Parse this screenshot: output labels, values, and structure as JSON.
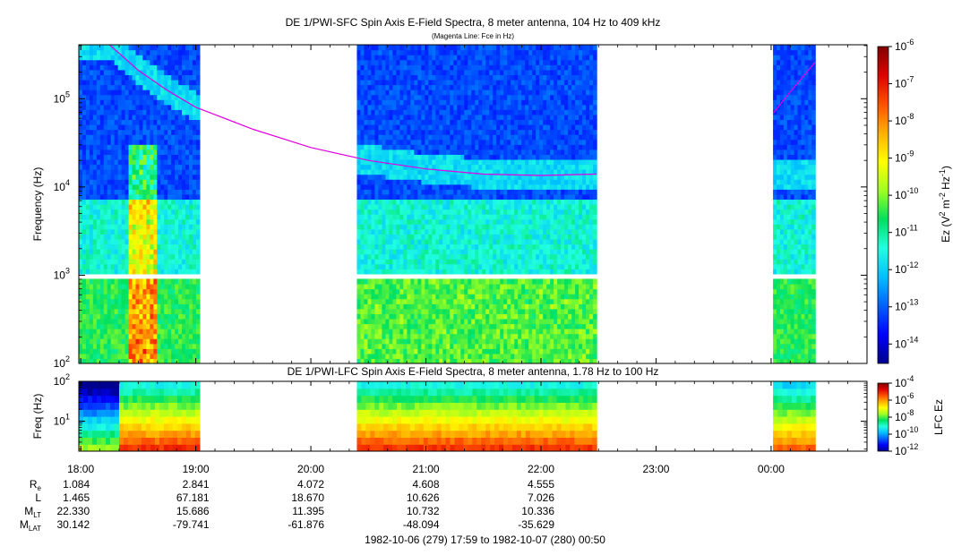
{
  "colors": {
    "fce_line": "#e000e0",
    "colormap": [
      "#00008f",
      "#0000ff",
      "#0060ff",
      "#00c0ff",
      "#20ffe0",
      "#00e060",
      "#a0ff20",
      "#ffff00",
      "#ffb000",
      "#ff5000",
      "#e00000",
      "#800000"
    ]
  },
  "chart_data": [
    {
      "type": "heatmap",
      "title": "DE 1/PWI-SFC  Spin Axis E-Field Spectra, 8 meter antenna, 104 Hz to 409 kHz",
      "subtitle": "(Magenta Line: Fce in Hz)",
      "ylabel": "Frequency (Hz)",
      "yscale": "log",
      "ylim": [
        100,
        409000
      ],
      "yticks": [
        {
          "base": "10",
          "exp": "2",
          "value": 100
        },
        {
          "base": "10",
          "exp": "3",
          "value": 1000
        },
        {
          "base": "10",
          "exp": "4",
          "value": 10000
        },
        {
          "base": "10",
          "exp": "5",
          "value": 100000
        }
      ],
      "xlim": [
        "17:59",
        "00:50"
      ],
      "data_intervals": [
        [
          "17:59",
          "19:02"
        ],
        [
          "20:24",
          "22:29"
        ],
        [
          "00:01",
          "00:23"
        ]
      ],
      "gap_band_hz": [
        930,
        1020
      ],
      "fce_line": {
        "name": "Fce",
        "points": [
          [
            "18:15",
            409000
          ],
          [
            "18:30",
            210000
          ],
          [
            "18:45",
            125000
          ],
          [
            "19:00",
            80000
          ],
          [
            "19:30",
            45000
          ],
          [
            "20:00",
            28000
          ],
          [
            "20:30",
            20000
          ],
          [
            "21:00",
            16000
          ],
          [
            "21:30",
            14000
          ],
          [
            "22:00",
            13500
          ],
          [
            "22:29",
            14000
          ]
        ],
        "points_2": [
          [
            "00:01",
            68000
          ],
          [
            "00:10",
            120000
          ],
          [
            "00:23",
            260000
          ]
        ]
      },
      "colorbar": {
        "label_parts": [
          "Ez (V",
          "2",
          " m",
          "-2",
          " Hz",
          "-1",
          ")"
        ],
        "scale": "log",
        "range": [
          3e-15,
          1e-06
        ],
        "ticks": [
          {
            "base": "10",
            "exp": "-6",
            "value": 1e-06
          },
          {
            "base": "10",
            "exp": "-7",
            "value": 1e-07
          },
          {
            "base": "10",
            "exp": "-8",
            "value": 1e-08
          },
          {
            "base": "10",
            "exp": "-9",
            "value": 1e-09
          },
          {
            "base": "10",
            "exp": "-10",
            "value": 1e-10
          },
          {
            "base": "10",
            "exp": "-11",
            "value": 1e-11
          },
          {
            "base": "10",
            "exp": "-12",
            "value": 1e-12
          },
          {
            "base": "10",
            "exp": "-13",
            "value": 1e-13
          },
          {
            "base": "10",
            "exp": "-14",
            "value": 1e-14
          }
        ]
      }
    },
    {
      "type": "heatmap",
      "title": "DE 1/PWI-LFC  Spin Axis E-Field Spectra, 8 meter antenna, 1.78 Hz to 100 Hz",
      "ylabel": "Freq (Hz)",
      "yscale": "log",
      "ylim": [
        1.78,
        100
      ],
      "yticks": [
        {
          "base": "10",
          "exp": "1",
          "value": 10
        },
        {
          "base": "10",
          "exp": "2",
          "value": 100
        }
      ],
      "xlim": [
        "17:59",
        "00:50"
      ],
      "data_intervals": [
        [
          "17:59",
          "19:02"
        ],
        [
          "20:24",
          "22:29"
        ],
        [
          "00:01",
          "00:23"
        ]
      ],
      "colorbar": {
        "label": "LFC Ez",
        "scale": "log",
        "range": [
          1e-12,
          0.0001
        ],
        "ticks": [
          {
            "base": "10",
            "exp": "-4",
            "value": 0.0001
          },
          {
            "base": "10",
            "exp": "-6",
            "value": 1e-06
          },
          {
            "base": "10",
            "exp": "-8",
            "value": 1e-08
          },
          {
            "base": "10",
            "exp": "-10",
            "value": 1e-10
          },
          {
            "base": "10",
            "exp": "-12",
            "value": 1e-12
          }
        ]
      }
    }
  ],
  "x_axis": {
    "ticks": [
      "18:00",
      "19:00",
      "20:00",
      "21:00",
      "22:00",
      "23:00",
      "00:00"
    ]
  },
  "ephemeris": {
    "rows": [
      {
        "label": "R",
        "sub": "e",
        "values": [
          "1.084",
          "2.841",
          "4.072",
          "4.608",
          "4.555"
        ]
      },
      {
        "label": "L",
        "sub": "",
        "values": [
          "1.465",
          "67.181",
          "18.670",
          "10.626",
          "7.026"
        ]
      },
      {
        "label": "M",
        "sub": "LT",
        "values": [
          "22.330",
          "15.686",
          "11.395",
          "10.732",
          "10.336"
        ]
      },
      {
        "label": "M",
        "sub": "LAT",
        "values": [
          "30.142",
          "-79.741",
          "-61.876",
          "-48.094",
          "-35.629"
        ]
      }
    ]
  },
  "footer": "1982-10-06 (279) 17:59 to 1982-10-07 (280) 00:50"
}
